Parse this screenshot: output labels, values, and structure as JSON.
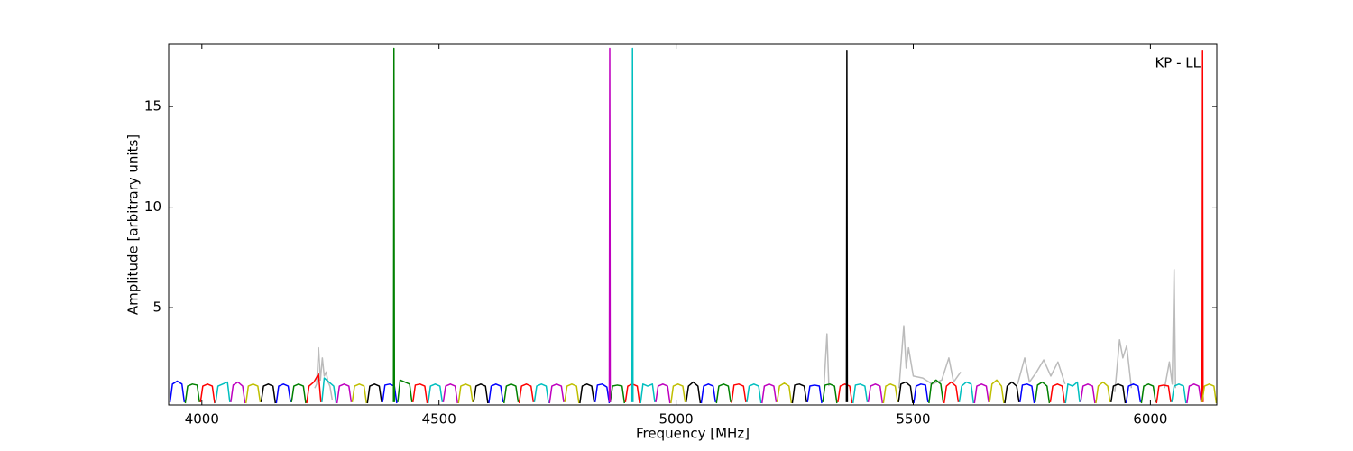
{
  "chart_data": {
    "type": "line",
    "xlabel": "Frequency [MHz]",
    "ylabel": "Amplitude [arbitrary units]",
    "annotation": "KP - LL",
    "xlim": [
      3930,
      6140
    ],
    "ylim": [
      0.16,
      18.1
    ],
    "xticks": [
      4000,
      4500,
      5000,
      5500,
      6000
    ],
    "yticks": [
      5,
      10,
      15
    ],
    "series": [
      {
        "color": "#bbbbbb",
        "x": [
          4238,
          4242,
          4246,
          4250,
          4254,
          4258,
          4262,
          4266,
          4270,
          4275,
          4276,
          5312,
          5318,
          5322,
          5323,
          5470,
          5480,
          5485,
          5490,
          5500,
          5520,
          5540,
          5560,
          5575,
          5585,
          5600,
          5601,
          5720,
          5735,
          5745,
          5760,
          5775,
          5790,
          5805,
          5820,
          5821,
          5925,
          5935,
          5942,
          5950,
          5960,
          5961,
          6030,
          6040,
          6046,
          6050,
          6053
        ],
        "values": [
          1.0,
          1.2,
          3.0,
          1.4,
          2.5,
          1.6,
          1.8,
          1.3,
          1.1,
          0.4,
          null,
          1.2,
          3.7,
          1.1,
          null,
          1.0,
          4.1,
          2.0,
          3.0,
          1.6,
          1.5,
          1.2,
          1.4,
          2.5,
          1.3,
          1.8,
          null,
          1.2,
          2.5,
          1.3,
          1.8,
          2.4,
          1.6,
          2.3,
          1.2,
          null,
          0.8,
          3.4,
          2.5,
          3.1,
          1.0,
          null,
          1.0,
          2.3,
          1.2,
          6.9,
          1.0
        ]
      },
      {
        "color": "#0000ff",
        "x": [
          3933,
          3938,
          3948,
          3958,
          3963,
          3964,
          4157,
          4162,
          4172,
          4182,
          4187,
          4188,
          4381,
          4386,
          4396,
          4406,
          4411,
          4412,
          4605,
          4610,
          4620,
          4630,
          4635,
          4636,
          4829,
          4834,
          4844,
          4854,
          4859,
          4860,
          5053,
          5058,
          5068,
          5078,
          5083,
          5084,
          5277,
          5282,
          5292,
          5302,
          5307,
          5308,
          5501,
          5506,
          5516,
          5526,
          5531,
          5532,
          5725,
          5730,
          5740,
          5750,
          5755,
          5756,
          5949,
          5954,
          5964,
          5974,
          5979
        ],
        "values": [
          0.3,
          1.2,
          1.35,
          1.2,
          0.3,
          null,
          0.25,
          1.1,
          1.2,
          1.1,
          0.3,
          null,
          0.3,
          1.15,
          1.2,
          1.1,
          0.25,
          null,
          0.25,
          1.1,
          1.2,
          1.1,
          0.3,
          null,
          0.3,
          1.15,
          1.2,
          1.05,
          0.25,
          null,
          0.25,
          1.1,
          1.2,
          1.1,
          0.3,
          null,
          0.3,
          1.1,
          1.15,
          1.1,
          0.25,
          null,
          0.25,
          1.1,
          1.2,
          1.15,
          0.3,
          null,
          0.3,
          1.15,
          1.2,
          1.1,
          0.25,
          null,
          0.25,
          1.1,
          1.2,
          1.1,
          0.3
        ]
      },
      {
        "color": "#008000",
        "x": [
          3965,
          3970,
          3980,
          3990,
          3995,
          3996,
          4189,
          4194,
          4204,
          4214,
          4219,
          4220,
          4413,
          4418,
          4428,
          4438,
          4443,
          4444,
          4637,
          4642,
          4652,
          4662,
          4667,
          4668,
          4861,
          4866,
          4876,
          4886,
          4891,
          4892,
          5085,
          5090,
          5100,
          5110,
          5115,
          5116,
          5309,
          5314,
          5324,
          5334,
          5339,
          5340,
          5533,
          5538,
          5548,
          5558,
          5563,
          5564,
          5757,
          5762,
          5772,
          5782,
          5787,
          5788,
          5981,
          5986,
          5996,
          6006,
          6011,
          6012,
          4404,
          4405,
          4406
        ],
        "values": [
          0.25,
          1.1,
          1.2,
          1.15,
          0.3,
          null,
          0.3,
          1.1,
          1.2,
          1.1,
          0.25,
          null,
          0.3,
          1.4,
          1.3,
          1.2,
          0.3,
          null,
          0.25,
          1.1,
          1.2,
          1.1,
          0.3,
          null,
          0.3,
          1.1,
          1.15,
          1.1,
          0.25,
          null,
          0.25,
          1.1,
          1.2,
          1.1,
          0.3,
          null,
          0.3,
          1.15,
          1.2,
          1.1,
          0.25,
          null,
          0.25,
          1.2,
          1.4,
          1.2,
          0.3,
          null,
          0.3,
          1.15,
          1.3,
          1.1,
          0.25,
          null,
          0.25,
          1.1,
          1.2,
          1.1,
          0.3,
          null,
          0.3,
          17.9,
          0.3
        ]
      },
      {
        "color": "#ff0000",
        "x": [
          3997,
          4002,
          4012,
          4022,
          4027,
          4028,
          4221,
          4226,
          4236,
          4246,
          4251,
          4252,
          4445,
          4450,
          4460,
          4470,
          4475,
          4476,
          4669,
          4674,
          4684,
          4694,
          4699,
          4700,
          4893,
          4898,
          4908,
          4918,
          4923,
          4924,
          5117,
          5122,
          5132,
          5142,
          5147,
          5148,
          5341,
          5346,
          5356,
          5366,
          5371,
          5372,
          5565,
          5570,
          5580,
          5590,
          5595,
          5596,
          5789,
          5794,
          5804,
          5814,
          5819,
          5820,
          6013,
          6018,
          6028,
          6038,
          6043,
          6044,
          6109,
          6110,
          6111
        ],
        "values": [
          0.3,
          1.1,
          1.2,
          1.1,
          0.25,
          null,
          0.25,
          1.1,
          1.3,
          1.7,
          0.3,
          null,
          0.3,
          1.15,
          1.2,
          1.1,
          0.25,
          null,
          0.25,
          1.1,
          1.2,
          1.1,
          0.3,
          null,
          0.3,
          1.1,
          1.2,
          1.1,
          0.25,
          null,
          0.25,
          1.15,
          1.2,
          1.1,
          0.3,
          null,
          0.3,
          1.1,
          1.2,
          1.1,
          0.25,
          null,
          0.25,
          1.1,
          1.3,
          1.1,
          0.3,
          null,
          0.3,
          1.1,
          1.2,
          1.1,
          0.25,
          null,
          0.25,
          1.1,
          1.15,
          1.1,
          0.3,
          null,
          0.3,
          17.8,
          0.3
        ]
      },
      {
        "color": "#00bfbf",
        "x": [
          4029,
          4034,
          4044,
          4054,
          4059,
          4060,
          4253,
          4258,
          4268,
          4278,
          4283,
          4284,
          4477,
          4482,
          4492,
          4502,
          4507,
          4508,
          4701,
          4706,
          4716,
          4726,
          4731,
          4732,
          4925,
          4930,
          4940,
          4950,
          4955,
          4956,
          5149,
          5154,
          5164,
          5174,
          5179,
          5180,
          5373,
          5378,
          5388,
          5398,
          5403,
          5404,
          5597,
          5602,
          5612,
          5622,
          5627,
          5628,
          5821,
          5826,
          5836,
          5846,
          5851,
          5852,
          6045,
          6050,
          6060,
          6070,
          6075,
          6076,
          4907,
          4908,
          4909
        ],
        "values": [
          0.25,
          1.1,
          1.2,
          1.3,
          0.3,
          null,
          0.3,
          1.5,
          1.3,
          1.1,
          0.25,
          null,
          0.25,
          1.1,
          1.2,
          1.1,
          0.3,
          null,
          0.3,
          1.1,
          1.2,
          1.1,
          0.25,
          null,
          0.25,
          1.2,
          1.1,
          1.2,
          0.3,
          null,
          0.3,
          1.1,
          1.2,
          1.1,
          0.25,
          null,
          0.25,
          1.15,
          1.2,
          1.1,
          0.3,
          null,
          0.3,
          1.1,
          1.3,
          1.2,
          0.25,
          null,
          0.25,
          1.2,
          1.1,
          1.3,
          0.3,
          null,
          0.3,
          1.1,
          1.2,
          1.1,
          0.25,
          null,
          0.3,
          17.9,
          0.3
        ]
      },
      {
        "color": "#bf00bf",
        "x": [
          4061,
          4066,
          4076,
          4086,
          4091,
          4092,
          4285,
          4290,
          4300,
          4310,
          4315,
          4316,
          4509,
          4514,
          4524,
          4534,
          4539,
          4540,
          4733,
          4738,
          4748,
          4758,
          4763,
          4764,
          4957,
          4962,
          4972,
          4982,
          4987,
          4988,
          5181,
          5186,
          5196,
          5206,
          5211,
          5212,
          5405,
          5410,
          5420,
          5430,
          5435,
          5436,
          5629,
          5634,
          5644,
          5654,
          5659,
          5660,
          5853,
          5858,
          5868,
          5878,
          5883,
          5884,
          6077,
          6082,
          6092,
          6102,
          6107,
          6108,
          4859,
          4860,
          4861
        ],
        "values": [
          0.3,
          1.15,
          1.3,
          1.1,
          0.25,
          null,
          0.25,
          1.1,
          1.2,
          1.1,
          0.3,
          null,
          0.3,
          1.1,
          1.2,
          1.1,
          0.25,
          null,
          0.25,
          1.1,
          1.2,
          1.1,
          0.3,
          null,
          0.3,
          1.1,
          1.2,
          1.1,
          0.25,
          null,
          0.25,
          1.1,
          1.2,
          1.1,
          0.3,
          null,
          0.3,
          1.1,
          1.2,
          1.1,
          0.25,
          null,
          0.25,
          1.1,
          1.2,
          1.1,
          0.3,
          null,
          0.3,
          1.1,
          1.2,
          1.1,
          0.25,
          null,
          0.25,
          1.1,
          1.2,
          1.1,
          0.3,
          null,
          0.3,
          17.9,
          0.3
        ]
      },
      {
        "color": "#bfbf00",
        "x": [
          4093,
          4098,
          4108,
          4118,
          4123,
          4124,
          4317,
          4322,
          4332,
          4342,
          4347,
          4348,
          4541,
          4546,
          4556,
          4566,
          4571,
          4572,
          4765,
          4770,
          4780,
          4790,
          4795,
          4796,
          4989,
          4994,
          5004,
          5014,
          5019,
          5020,
          5213,
          5218,
          5228,
          5238,
          5243,
          5244,
          5437,
          5442,
          5452,
          5462,
          5467,
          5468,
          5661,
          5666,
          5676,
          5686,
          5691,
          5692,
          5885,
          5890,
          5900,
          5910,
          5915,
          5916,
          6109,
          6114,
          6124,
          6134,
          6139
        ],
        "values": [
          0.25,
          1.1,
          1.2,
          1.1,
          0.3,
          null,
          0.3,
          1.1,
          1.2,
          1.1,
          0.25,
          null,
          0.25,
          1.1,
          1.2,
          1.1,
          0.3,
          null,
          0.3,
          1.1,
          1.2,
          1.1,
          0.25,
          null,
          0.25,
          1.1,
          1.2,
          1.1,
          0.3,
          null,
          0.3,
          1.1,
          1.25,
          1.1,
          0.25,
          null,
          0.25,
          1.1,
          1.2,
          1.1,
          0.3,
          null,
          0.3,
          1.2,
          1.4,
          1.1,
          0.25,
          null,
          0.25,
          1.1,
          1.3,
          1.1,
          0.3,
          null,
          0.3,
          1.1,
          1.2,
          1.1,
          0.25
        ]
      },
      {
        "color": "#000000",
        "x": [
          4125,
          4130,
          4140,
          4150,
          4155,
          4156,
          4349,
          4354,
          4364,
          4374,
          4379,
          4380,
          4573,
          4578,
          4588,
          4598,
          4603,
          4604,
          4797,
          4802,
          4812,
          4822,
          4827,
          4828,
          5021,
          5026,
          5036,
          5046,
          5051,
          5052,
          5245,
          5250,
          5260,
          5270,
          5275,
          5276,
          5469,
          5474,
          5484,
          5494,
          5499,
          5500,
          5693,
          5698,
          5708,
          5718,
          5723,
          5724,
          5917,
          5922,
          5932,
          5942,
          5947,
          5948,
          5359,
          5360,
          5361
        ],
        "values": [
          0.3,
          1.1,
          1.2,
          1.1,
          0.25,
          null,
          0.25,
          1.1,
          1.2,
          1.1,
          0.3,
          null,
          0.3,
          1.1,
          1.2,
          1.1,
          0.25,
          null,
          0.25,
          1.1,
          1.2,
          1.1,
          0.3,
          null,
          0.3,
          1.1,
          1.3,
          1.1,
          0.25,
          null,
          0.25,
          1.15,
          1.2,
          1.1,
          0.3,
          null,
          0.3,
          1.2,
          1.3,
          1.1,
          0.25,
          null,
          0.25,
          1.1,
          1.3,
          1.1,
          0.3,
          null,
          0.3,
          1.1,
          1.2,
          1.1,
          0.25,
          null,
          0.3,
          17.8,
          0.3
        ]
      }
    ]
  }
}
